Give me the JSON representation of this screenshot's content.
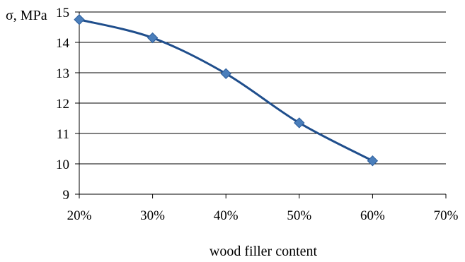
{
  "chart_data": {
    "type": "line",
    "title": "",
    "xlabel": "wood filler  content",
    "ylabel": "σ, MPa",
    "x": [
      20,
      30,
      40,
      50,
      60
    ],
    "x_ticks": [
      "20%",
      "30%",
      "40%",
      "50%",
      "60%",
      "70%"
    ],
    "x_tick_values": [
      20,
      30,
      40,
      50,
      60,
      70
    ],
    "xlim": [
      20,
      70
    ],
    "ylim": [
      9,
      15
    ],
    "y_ticks": [
      "9",
      "10",
      "11",
      "12",
      "13",
      "14",
      "15"
    ],
    "y_tick_values": [
      9,
      10,
      11,
      12,
      13,
      14,
      15
    ],
    "grid": "horizontal",
    "smooth": true,
    "marker": "diamond",
    "series": [
      {
        "values": [
          14.75,
          14.15,
          12.97,
          11.35,
          10.1
        ]
      }
    ],
    "colors": {
      "line": "#1f4e8c",
      "marker_fill": "#4a7ebb",
      "marker_stroke": "#2c5d9a"
    }
  }
}
